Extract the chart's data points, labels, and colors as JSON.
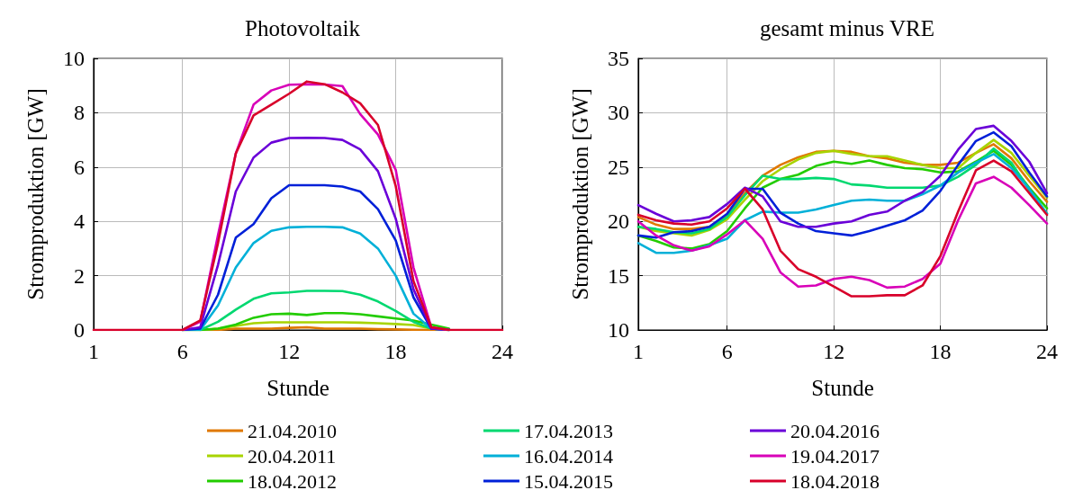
{
  "chart_data": [
    {
      "type": "line",
      "title": "Photovoltaik",
      "xlabel": "Stunde",
      "ylabel": "Stromproduktion [GW]",
      "x": [
        1,
        2,
        3,
        4,
        5,
        6,
        7,
        8,
        9,
        10,
        11,
        12,
        13,
        14,
        15,
        16,
        17,
        18,
        19,
        20,
        21,
        22,
        23,
        24
      ],
      "xlim": [
        1,
        24
      ],
      "xticks": [
        1,
        6,
        12,
        18,
        24
      ],
      "ylim": [
        0,
        10
      ],
      "yticks": [
        0,
        2,
        4,
        6,
        8,
        10
      ],
      "grid": true,
      "legend": "bottom",
      "marker": "none",
      "line_style": "solid",
      "series": [
        {
          "name": "21.04.2010",
          "color": "#e07800",
          "values": [
            null,
            null,
            null,
            null,
            null,
            null,
            0,
            0,
            0.05,
            0.05,
            0.05,
            0.08,
            0.1,
            0.05,
            0.05,
            0.05,
            0.03,
            0.02,
            0.01,
            0,
            0,
            null,
            null,
            null
          ]
        },
        {
          "name": "20.04.2011",
          "color": "#a8d400",
          "values": [
            null,
            null,
            null,
            null,
            null,
            0,
            0,
            0.05,
            0.15,
            0.25,
            0.28,
            0.28,
            0.28,
            0.28,
            0.28,
            0.27,
            0.25,
            0.22,
            0.18,
            0.05,
            0,
            null,
            null,
            null
          ]
        },
        {
          "name": "18.04.2012",
          "color": "#22cc00",
          "values": [
            null,
            null,
            null,
            null,
            null,
            0,
            0,
            0.05,
            0.2,
            0.45,
            0.58,
            0.6,
            0.55,
            0.62,
            0.62,
            0.58,
            0.5,
            0.42,
            0.35,
            0.2,
            0.05,
            null,
            null,
            null
          ]
        },
        {
          "name": "17.04.2013",
          "color": "#00d870",
          "values": [
            null,
            null,
            null,
            null,
            null,
            0,
            0,
            0.3,
            0.75,
            1.15,
            1.35,
            1.38,
            1.44,
            1.44,
            1.43,
            1.3,
            1.05,
            0.7,
            0.3,
            0.05,
            0,
            null,
            null,
            null
          ]
        },
        {
          "name": "16.04.2014",
          "color": "#00b0d8",
          "values": [
            null,
            null,
            null,
            null,
            null,
            0,
            0,
            0.9,
            2.3,
            3.2,
            3.65,
            3.78,
            3.8,
            3.8,
            3.78,
            3.55,
            3.0,
            2.0,
            0.6,
            0.05,
            0,
            null,
            null,
            null
          ]
        },
        {
          "name": "15.04.2015",
          "color": "#0020d8",
          "values": [
            null,
            null,
            null,
            null,
            null,
            0,
            0.05,
            1.3,
            3.4,
            3.9,
            4.85,
            5.33,
            5.33,
            5.33,
            5.28,
            5.1,
            4.45,
            3.3,
            1.2,
            0.05,
            0,
            null,
            null,
            null
          ]
        },
        {
          "name": "20.04.2016",
          "color": "#6a00d8",
          "values": [
            null,
            null,
            null,
            null,
            null,
            0,
            0.1,
            2.4,
            5.1,
            6.35,
            6.9,
            7.07,
            7.08,
            7.07,
            7.0,
            6.65,
            5.85,
            4.1,
            1.5,
            0.05,
            0,
            null,
            null,
            null
          ]
        },
        {
          "name": "19.04.2017",
          "color": "#d800b8",
          "values": [
            null,
            null,
            null,
            null,
            null,
            0,
            0.3,
            3.5,
            6.5,
            8.3,
            8.82,
            9.03,
            9.05,
            9.04,
            8.98,
            7.95,
            7.2,
            5.9,
            2.3,
            0.1,
            0,
            null,
            null,
            null
          ]
        },
        {
          "name": "18.04.2018",
          "color": "#d8002a",
          "values": [
            0,
            0,
            0,
            0,
            0,
            0,
            0.35,
            3.2,
            6.5,
            7.9,
            8.3,
            8.7,
            9.15,
            9.05,
            8.75,
            8.35,
            7.55,
            5.3,
            1.8,
            0.1,
            0,
            0,
            0,
            0
          ]
        }
      ]
    },
    {
      "type": "line",
      "title": "gesamt minus VRE",
      "xlabel": "Stunde",
      "ylabel": "Stromproduktion [GW]",
      "x": [
        1,
        2,
        3,
        4,
        5,
        6,
        7,
        8,
        9,
        10,
        11,
        12,
        13,
        14,
        15,
        16,
        17,
        18,
        19,
        20,
        21,
        22,
        23,
        24
      ],
      "xlim": [
        1,
        24
      ],
      "xticks": [
        1,
        6,
        12,
        18,
        24
      ],
      "ylim": [
        10,
        35
      ],
      "yticks": [
        10,
        15,
        20,
        25,
        30,
        35
      ],
      "grid": true,
      "marker": "none",
      "line_style": "solid",
      "series": [
        {
          "color": "#e07800",
          "values": [
            20.4,
            19.7,
            19.3,
            19.3,
            19.5,
            20.6,
            22.6,
            24.2,
            25.2,
            25.9,
            26.4,
            26.5,
            26.4,
            26.0,
            25.8,
            25.4,
            25.2,
            25.2,
            25.4,
            26.3,
            27.1,
            25.8,
            23.7,
            21.8
          ]
        },
        {
          "color": "#a8d400",
          "values": [
            19.5,
            19.1,
            18.9,
            18.7,
            19.2,
            20.2,
            22.0,
            23.7,
            24.8,
            25.7,
            26.3,
            26.5,
            26.2,
            26.0,
            26.0,
            25.6,
            25.2,
            24.9,
            24.9,
            26.3,
            27.5,
            26.3,
            24.2,
            22.2
          ]
        },
        {
          "color": "#22cc00",
          "values": [
            18.7,
            18.2,
            17.6,
            17.5,
            17.9,
            19.1,
            21.2,
            23.1,
            23.9,
            24.3,
            25.1,
            25.5,
            25.3,
            25.6,
            25.2,
            24.9,
            24.8,
            24.5,
            24.6,
            25.5,
            26.5,
            25.2,
            23.1,
            21.2
          ]
        },
        {
          "color": "#00d870",
          "values": [
            19.5,
            19.3,
            19.0,
            18.9,
            19.3,
            20.4,
            22.4,
            24.2,
            23.9,
            23.9,
            24.0,
            23.9,
            23.4,
            23.3,
            23.1,
            23.1,
            23.1,
            23.3,
            24.1,
            25.2,
            26.7,
            25.4,
            22.9,
            20.7
          ]
        },
        {
          "color": "#00b0d8",
          "values": [
            18.0,
            17.1,
            17.1,
            17.3,
            17.8,
            18.4,
            20.1,
            20.9,
            20.8,
            20.8,
            21.1,
            21.5,
            21.9,
            22.0,
            21.9,
            21.9,
            22.5,
            23.3,
            24.5,
            25.4,
            26.2,
            24.9,
            23.0,
            20.7
          ]
        },
        {
          "color": "#0020d8",
          "values": [
            18.7,
            18.5,
            19.0,
            19.1,
            19.5,
            20.7,
            23.0,
            23.0,
            20.8,
            19.8,
            19.1,
            18.9,
            18.7,
            19.1,
            19.6,
            20.1,
            21.0,
            22.8,
            25.2,
            27.4,
            28.2,
            26.9,
            24.5,
            22.3
          ]
        },
        {
          "color": "#6a00d8",
          "values": [
            21.5,
            20.7,
            20.0,
            20.1,
            20.4,
            21.6,
            23.1,
            22.3,
            20.0,
            19.5,
            19.5,
            19.8,
            20.0,
            20.6,
            20.9,
            21.9,
            22.7,
            24.2,
            26.6,
            28.5,
            28.8,
            27.4,
            25.5,
            22.6
          ]
        },
        {
          "color": "#d800b8",
          "values": [
            20.0,
            18.7,
            17.8,
            17.3,
            17.7,
            18.8,
            20.1,
            18.4,
            15.3,
            14.0,
            14.1,
            14.7,
            14.9,
            14.6,
            13.9,
            14.0,
            14.7,
            16.1,
            20.1,
            23.5,
            24.1,
            23.1,
            21.5,
            19.8
          ]
        },
        {
          "color": "#d8002a",
          "values": [
            20.6,
            20.1,
            19.8,
            19.7,
            20.0,
            21.2,
            23.0,
            21.1,
            17.3,
            15.6,
            14.9,
            14.0,
            13.1,
            13.1,
            13.2,
            13.2,
            14.1,
            16.8,
            20.9,
            24.7,
            25.6,
            24.6,
            22.6,
            20.6
          ]
        }
      ]
    }
  ]
}
